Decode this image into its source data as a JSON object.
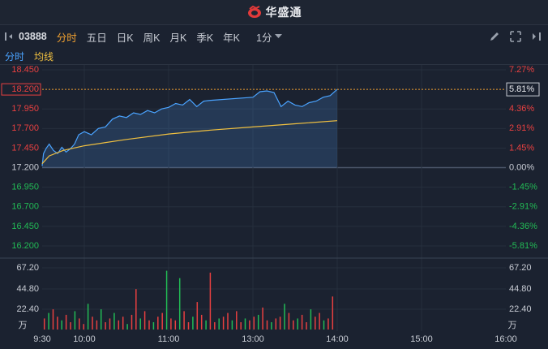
{
  "app": {
    "brand": "华盛通"
  },
  "toolbar": {
    "code": "03888",
    "tabs": [
      "分时",
      "五日",
      "日K",
      "周K",
      "月K",
      "季K",
      "年K"
    ],
    "active_tab": 0,
    "interval": "1分"
  },
  "legend": {
    "minute": "分时",
    "avg": "均线"
  },
  "colors": {
    "up": "#e84040",
    "down": "#22bb55",
    "price": "#4aa3ff",
    "avg": "#f0c040",
    "accent": "#f0a030"
  },
  "price_axis": {
    "left": [
      "18.450",
      "17.950",
      "17.700",
      "17.450",
      "17.200",
      "16.950",
      "16.700",
      "16.450",
      "16.200"
    ],
    "right": [
      "7.27%",
      "4.36%",
      "2.91%",
      "1.45%",
      "0.00%",
      "-1.45%",
      "-2.91%",
      "-4.36%",
      "-5.81%"
    ],
    "current_price": "18.200",
    "current_pct": "5.81%"
  },
  "volume_axis": {
    "labels": [
      "67.20",
      "44.80",
      "22.40"
    ],
    "unit": "万"
  },
  "time_axis": [
    "9:30",
    "10:00",
    "11:00",
    "13:00",
    "14:00",
    "15:00",
    "16:00"
  ],
  "chart_data": {
    "type": "line",
    "title": "",
    "prev_close": 17.2,
    "ylim": [
      16.2,
      18.45
    ],
    "series": [
      {
        "name": "分时",
        "x": [
          "9:30",
          "9:31",
          "9:33",
          "9:35",
          "9:38",
          "9:41",
          "9:44",
          "9:47",
          "9:50",
          "9:53",
          "9:56",
          "10:00",
          "10:05",
          "10:10",
          "10:15",
          "10:20",
          "10:25",
          "10:30",
          "10:35",
          "10:40",
          "10:45",
          "10:50",
          "10:55",
          "11:00",
          "11:05",
          "11:10",
          "11:15",
          "11:20",
          "11:25",
          "11:30",
          "13:00",
          "13:05",
          "13:10",
          "13:15",
          "13:20",
          "13:25",
          "13:30",
          "13:35",
          "13:40",
          "13:45",
          "13:50",
          "13:55",
          "14:00"
        ],
        "values": [
          17.22,
          17.38,
          17.45,
          17.5,
          17.42,
          17.38,
          17.46,
          17.4,
          17.44,
          17.5,
          17.62,
          17.66,
          17.62,
          17.7,
          17.72,
          17.82,
          17.86,
          17.84,
          17.9,
          17.88,
          17.93,
          17.9,
          17.95,
          17.97,
          18.02,
          18.0,
          18.07,
          17.98,
          18.05,
          18.06,
          18.1,
          18.17,
          18.18,
          18.16,
          17.98,
          18.05,
          18.0,
          17.98,
          18.03,
          18.05,
          18.1,
          18.12,
          18.2
        ]
      },
      {
        "name": "均线",
        "x": [
          "9:30",
          "9:35",
          "9:45",
          "10:00",
          "10:30",
          "11:00",
          "11:30",
          "13:00",
          "13:30",
          "14:00"
        ],
        "values": [
          17.25,
          17.35,
          17.42,
          17.48,
          17.56,
          17.63,
          17.68,
          17.72,
          17.76,
          17.8
        ]
      }
    ],
    "volume": {
      "unit": "万",
      "ylim": [
        0,
        67.2
      ],
      "values": [
        12,
        18,
        22,
        14,
        10,
        16,
        8,
        20,
        12,
        6,
        28,
        14,
        10,
        22,
        8,
        12,
        18,
        10,
        14,
        6,
        16,
        44,
        12,
        20,
        10,
        8,
        14,
        18,
        64,
        12,
        10,
        56,
        20,
        8,
        14,
        30,
        16,
        10,
        62,
        8,
        12,
        14,
        18,
        10,
        20,
        8,
        12,
        10,
        14,
        16,
        24,
        10,
        8,
        12,
        14,
        28,
        18,
        10,
        12,
        16,
        8,
        22,
        14,
        18,
        10,
        12,
        36
      ]
    }
  }
}
